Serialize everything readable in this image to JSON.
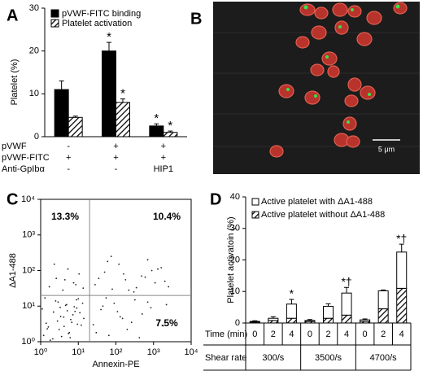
{
  "chart_data": [
    {
      "type": "bar",
      "panel_label": "A",
      "y_label": "Platelet (%)",
      "ylim": [
        0,
        30
      ],
      "yticks": [
        0,
        10,
        20,
        30
      ],
      "categories": [
        null,
        null,
        null
      ],
      "series": [
        {
          "name": "pVWF-FITC binding",
          "color": "#000000",
          "pattern": "solid",
          "values": [
            11,
            20,
            2.5
          ],
          "errors": [
            2,
            2,
            0.5
          ],
          "markers": [
            null,
            "*",
            "*"
          ]
        },
        {
          "name": "Platelet activation",
          "color": "#000000",
          "pattern": "hatch",
          "values": [
            4.5,
            8,
            1
          ],
          "errors": [
            0.3,
            0.8,
            0.3
          ],
          "markers": [
            null,
            "*",
            "*"
          ]
        }
      ],
      "rows": [
        {
          "label": "pVWF",
          "cells": [
            "-",
            "+",
            "+"
          ]
        },
        {
          "label": "pVWF-FITC",
          "cells": [
            "+",
            "+",
            "+"
          ]
        },
        {
          "label": "Anti-GpIbα",
          "cells": [
            "-",
            "-",
            "HIP1"
          ]
        }
      ]
    },
    {
      "type": "image",
      "panel_label": "B",
      "scale_bar": "5 μm"
    },
    {
      "type": "scatter",
      "panel_label": "C",
      "x_label": "Annexin-PE",
      "y_label": "ΔA1-488",
      "log_x": true,
      "log_y": true,
      "xlim": [
        1,
        10000
      ],
      "ylim": [
        1,
        10000
      ],
      "xticks": [
        {
          "value": 1,
          "label": "10⁰"
        },
        {
          "value": 10,
          "label": "10¹"
        },
        {
          "value": 100,
          "label": "10²"
        },
        {
          "value": 1000,
          "label": "10³"
        },
        {
          "value": 10000,
          "label": "10⁴"
        }
      ],
      "yticks": [
        {
          "value": 1,
          "label": "10⁰"
        },
        {
          "value": 10,
          "label": "10¹"
        },
        {
          "value": 100,
          "label": "10²"
        },
        {
          "value": 1000,
          "label": "10³"
        },
        {
          "value": 10000,
          "label": "10⁴"
        }
      ],
      "gate_x": 20,
      "gate_y": 20,
      "color": "#222222",
      "quadrants": [
        {
          "label": "13.3%",
          "corner": "upper left"
        },
        {
          "label": "10.4%",
          "corner": "upper right"
        },
        {
          "label": "7.5%",
          "corner": "lower right"
        }
      ],
      "x": [
        1.2,
        1.5,
        2.1,
        2.8,
        3.4,
        4.2,
        5.1,
        6.3,
        7.8,
        9.5,
        11,
        13,
        1.1,
        1.8,
        2.5,
        3.1,
        4.6,
        5.8,
        7.2,
        8.9,
        12,
        14,
        1.3,
        2.2,
        3.6,
        4.9,
        6.7,
        9.1,
        1.6,
        2.9,
        4.1,
        5.5,
        8.2,
        10,
        1.4,
        3.3,
        6.1,
        1.7,
        2.6,
        3.9,
        5.3,
        7.5,
        10.5,
        13.5,
        2.3,
        4.4,
        8.6,
        25,
        40,
        65,
        90,
        130,
        200,
        320,
        500,
        850,
        1400,
        2200,
        30,
        55,
        110,
        260,
        700,
        1800,
        45,
        150,
        420,
        28,
        50,
        80,
        120,
        180,
        300,
        480,
        700,
        1100,
        1600,
        2500,
        35,
        75,
        160,
        350,
        900,
        2000,
        60,
        220,
        600,
        1300
      ],
      "y": [
        1.5,
        2.3,
        1.2,
        3.8,
        5.1,
        2.7,
        7.4,
        4.2,
        9.6,
        3.1,
        6.5,
        12,
        8.3,
        1.1,
        14,
        2.2,
        10.5,
        1.8,
        5.7,
        15,
        2.9,
        4.5,
        17,
        6.8,
        1.4,
        11,
        3.5,
        8.8,
        2.6,
        13,
        4.9,
        1.7,
        7.1,
        16,
        3.3,
        9.2,
        1.3,
        35,
        60,
        28,
        110,
        45,
        80,
        32,
        150,
        55,
        40,
        3,
        8,
        1.5,
        12,
        5,
        2.2,
        15,
        6,
        9,
        4,
        11,
        1.8,
        17,
        7,
        3.5,
        13,
        2.8,
        10,
        4.5,
        1.3,
        40,
        90,
        30,
        150,
        55,
        25,
        70,
        200,
        45,
        120,
        35,
        60,
        250,
        80,
        33,
        100,
        50,
        180,
        28,
        65,
        110
      ]
    },
    {
      "type": "stacked_bar",
      "panel_label": "D",
      "y_label": "Platelet activatoin (%)",
      "ylim": [
        0,
        40
      ],
      "yticks": [
        0,
        10,
        20,
        30,
        40
      ],
      "category_label": "Time (min)",
      "categories": [
        "0",
        "2",
        "4",
        "0",
        "2",
        "4",
        "0",
        "2",
        "4"
      ],
      "group_label": "Shear rate",
      "groups": [
        "300/s",
        "3500/s",
        "4700/s"
      ],
      "series": [
        {
          "name": "Active platelet with ΔA1-488",
          "color": "#ffffff",
          "pattern": "solid",
          "values": [
            0.2,
            0.7,
            4.5,
            0.3,
            3.8,
            7,
            0.5,
            5.7,
            11.5
          ],
          "errors": [
            0.2,
            0.5,
            1.5,
            0.3,
            0.8,
            1.8,
            0.3,
            0.3,
            2.5
          ]
        },
        {
          "name": "Active platelet without ΔA1-488",
          "color": "#000000",
          "pattern": "hatch",
          "values": [
            0.3,
            0.8,
            1.5,
            0.5,
            1.5,
            2.5,
            0.5,
            4.5,
            11
          ],
          "errors": [
            0.1,
            0.3,
            0.5,
            0.2,
            0.5,
            1,
            0.2,
            2,
            3.5
          ]
        }
      ],
      "markers": [
        null,
        null,
        "*",
        null,
        null,
        "*†",
        null,
        null,
        "*†"
      ]
    }
  ]
}
